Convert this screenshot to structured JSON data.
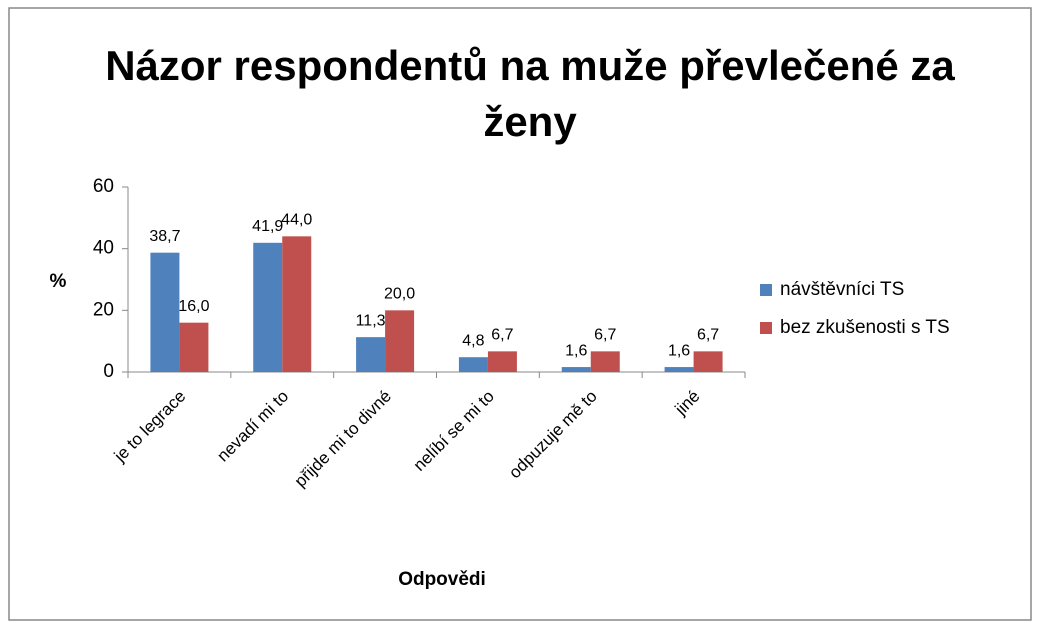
{
  "chart_data": {
    "type": "bar",
    "title": "Názor respondentů na muže převlečené za ženy",
    "x_label": "Odpovědi",
    "y_label": "%",
    "categories": [
      "je to legrace",
      "nevadí mi to",
      "přijde mi to divné",
      "nelíbí se mi to",
      "odpuzuje mě to",
      "jiné"
    ],
    "series": [
      {
        "name": "návštěvníci TS",
        "color": "#4f81bd",
        "values": [
          38.7,
          41.9,
          11.3,
          4.8,
          1.6,
          1.6
        ],
        "value_labels": [
          "38,7",
          "41,9",
          "11,3",
          "4,8",
          "1,6",
          "1,6"
        ]
      },
      {
        "name": "bez zkušenosti s TS",
        "color": "#c0504d",
        "values": [
          16.0,
          44.0,
          20.0,
          6.7,
          6.7,
          6.7
        ],
        "value_labels": [
          "16,0",
          "44,0",
          "20,0",
          "6,7",
          "6,7",
          "6,7"
        ]
      }
    ],
    "ylim": [
      0,
      60
    ],
    "yticks": [
      0,
      20,
      40,
      60
    ],
    "legend": "right"
  }
}
